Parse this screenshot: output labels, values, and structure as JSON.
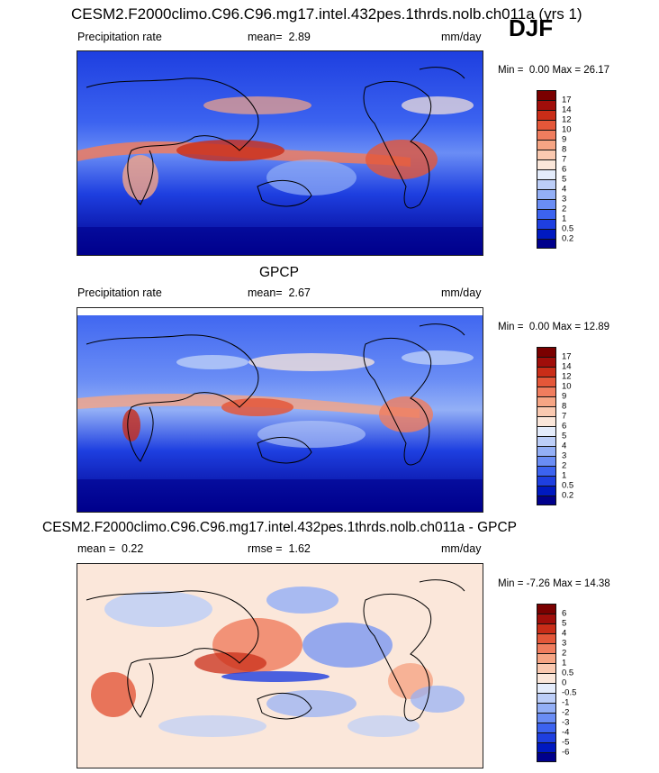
{
  "season": "DJF",
  "colors": {
    "abs_scale": [
      "#00008C",
      "#0019C0",
      "#1E3FE0",
      "#3C63F0",
      "#6A8DF5",
      "#93AFF6",
      "#BCCEF8",
      "#E4ECFB",
      "#FBE7DA",
      "#FAC9B0",
      "#F6A584",
      "#F07D5E",
      "#E45739",
      "#C92D18",
      "#A00E0A",
      "#7A0000"
    ],
    "diff_scale": [
      "#00008C",
      "#0019C0",
      "#1E3FE0",
      "#3C63F0",
      "#6A8DF5",
      "#93AFF6",
      "#BCCEF8",
      "#E4ECFB",
      "#FBE7DA",
      "#FAC9B0",
      "#F6A584",
      "#F07D5E",
      "#E45739",
      "#C92D18",
      "#A00E0A",
      "#7A0000"
    ],
    "ocean_low": "#1730D0",
    "land_line": "#000000"
  },
  "panel1": {
    "title": "CESM2.F2000climo.C96.C96.mg17.intel.432pes.1thrds.nolb.ch011a (yrs 1)",
    "left": "Precipitation rate",
    "mean_label": "mean=",
    "mean_value": "2.89",
    "units": "mm/day",
    "min_label": "Min =",
    "min_value": "0.00",
    "max_label": "Max =",
    "max_value": "26.17"
  },
  "panel2": {
    "title": "GPCP",
    "left": "Precipitation rate",
    "mean_label": "mean=",
    "mean_value": "2.67",
    "units": "mm/day",
    "min_label": "Min =",
    "min_value": "0.00",
    "max_label": "Max =",
    "max_value": "12.89"
  },
  "panel3": {
    "title": "CESM2.F2000climo.C96.C96.mg17.intel.432pes.1thrds.nolb.ch011a - GPCP",
    "mean_label": "mean =",
    "mean_value": "0.22",
    "rmse_label": "rmse =",
    "rmse_value": "1.62",
    "units": "mm/day",
    "min_label": "Min =",
    "min_value": "-7.26",
    "max_label": "Max =",
    "max_value": "14.38"
  },
  "abs_ticks": [
    "17",
    "14",
    "12",
    "10",
    "9",
    "8",
    "7",
    "6",
    "5",
    "4",
    "3",
    "2",
    "1",
    "0.5",
    "0.2"
  ],
  "diff_ticks": [
    "6",
    "5",
    "4",
    "3",
    "2",
    "1",
    "0.5",
    "0",
    "-0.5",
    "-1",
    "-2",
    "-3",
    "-4",
    "-5",
    "-6"
  ]
}
